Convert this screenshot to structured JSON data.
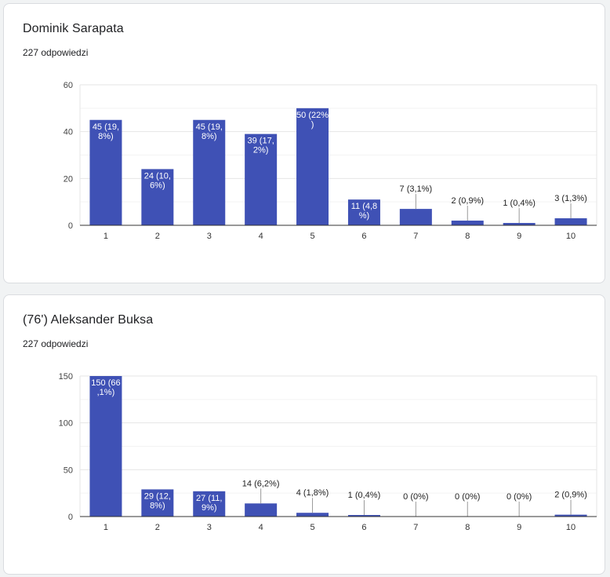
{
  "colors": {
    "bar": "#3f51b5",
    "grid": "#e6e6e6",
    "axis": "#333333",
    "label_inside": "#ffffff",
    "label_outside": "#222222"
  },
  "cards": [
    {
      "title": "Dominik Sarapata",
      "responses": "227 odpowiedzi"
    },
    {
      "title": "(76') Aleksander Buksa",
      "responses": "227 odpowiedzi"
    }
  ],
  "chart_data": [
    {
      "type": "bar",
      "categories": [
        "1",
        "2",
        "3",
        "4",
        "5",
        "6",
        "7",
        "8",
        "9",
        "10"
      ],
      "values": [
        45,
        24,
        45,
        39,
        50,
        11,
        7,
        2,
        1,
        3
      ],
      "data_labels": [
        "45 (19,8%)",
        "24 (10,6%)",
        "45 (19,8%)",
        "39 (17,2%)",
        "50 (22%)",
        "11 (4,8%)",
        "7 (3,1%)",
        "2 (0,9%)",
        "1 (0,4%)",
        "3 (1,3%)"
      ],
      "ylim": [
        0,
        60
      ],
      "yticks": [
        0,
        20,
        40,
        60
      ],
      "grid": true,
      "xlabel": "",
      "ylabel": ""
    },
    {
      "type": "bar",
      "categories": [
        "1",
        "2",
        "3",
        "4",
        "5",
        "6",
        "7",
        "8",
        "9",
        "10"
      ],
      "values": [
        150,
        29,
        27,
        14,
        4,
        1,
        0,
        0,
        0,
        2
      ],
      "data_labels": [
        "150 (66,1%)",
        "29 (12,8%)",
        "27 (11,9%)",
        "14 (6,2%)",
        "4 (1,8%)",
        "1 (0,4%)",
        "0 (0%)",
        "0 (0%)",
        "0 (0%)",
        "2 (0,9%)"
      ],
      "ylim": [
        0,
        150
      ],
      "yticks": [
        0,
        50,
        100,
        150
      ],
      "grid": true,
      "xlabel": "",
      "ylabel": ""
    }
  ]
}
